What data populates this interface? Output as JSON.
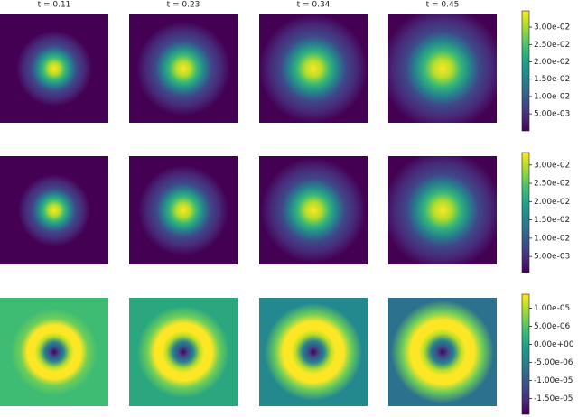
{
  "chart_data": [
    {
      "type": "heatmap",
      "titles": [
        "t = 0.11",
        "t = 0.23",
        "t = 0.34",
        "t = 0.45"
      ],
      "colorbar": {
        "zlim": [
          0.0001,
          0.0347
        ],
        "ticks": [
          {
            "value": 0.005,
            "label": "5.00e-03"
          },
          {
            "value": 0.01,
            "label": "1.00e-02"
          },
          {
            "value": 0.015,
            "label": "1.50e-02"
          },
          {
            "value": 0.02,
            "label": "2.00e-02"
          },
          {
            "value": 0.025,
            "label": "2.50e-02"
          },
          {
            "value": 0.03,
            "label": "3.00e-02"
          }
        ]
      }
    },
    {
      "type": "heatmap",
      "colorbar": {
        "zlim": [
          0.0006,
          0.0334
        ],
        "ticks": [
          {
            "value": 0.005,
            "label": "5.00e-03"
          },
          {
            "value": 0.01,
            "label": "1.00e-02"
          },
          {
            "value": 0.015,
            "label": "1.50e-02"
          },
          {
            "value": 0.02,
            "label": "2.00e-02"
          },
          {
            "value": 0.025,
            "label": "2.50e-02"
          },
          {
            "value": 0.03,
            "label": "3.00e-02"
          }
        ]
      }
    },
    {
      "type": "heatmap",
      "colorbar": {
        "zlim": [
          -1.94e-05,
          1.39e-05
        ],
        "ticks": [
          {
            "value": -1.5e-05,
            "label": "-1.50e-05"
          },
          {
            "value": -1e-05,
            "label": "-1.00e-05"
          },
          {
            "value": -5e-06,
            "label": "-5.00e-06"
          },
          {
            "value": 0,
            "label": "0.00e+00"
          },
          {
            "value": 5e-06,
            "label": "5.00e-06"
          },
          {
            "value": 1e-05,
            "label": "1.00e-05"
          }
        ]
      }
    }
  ]
}
